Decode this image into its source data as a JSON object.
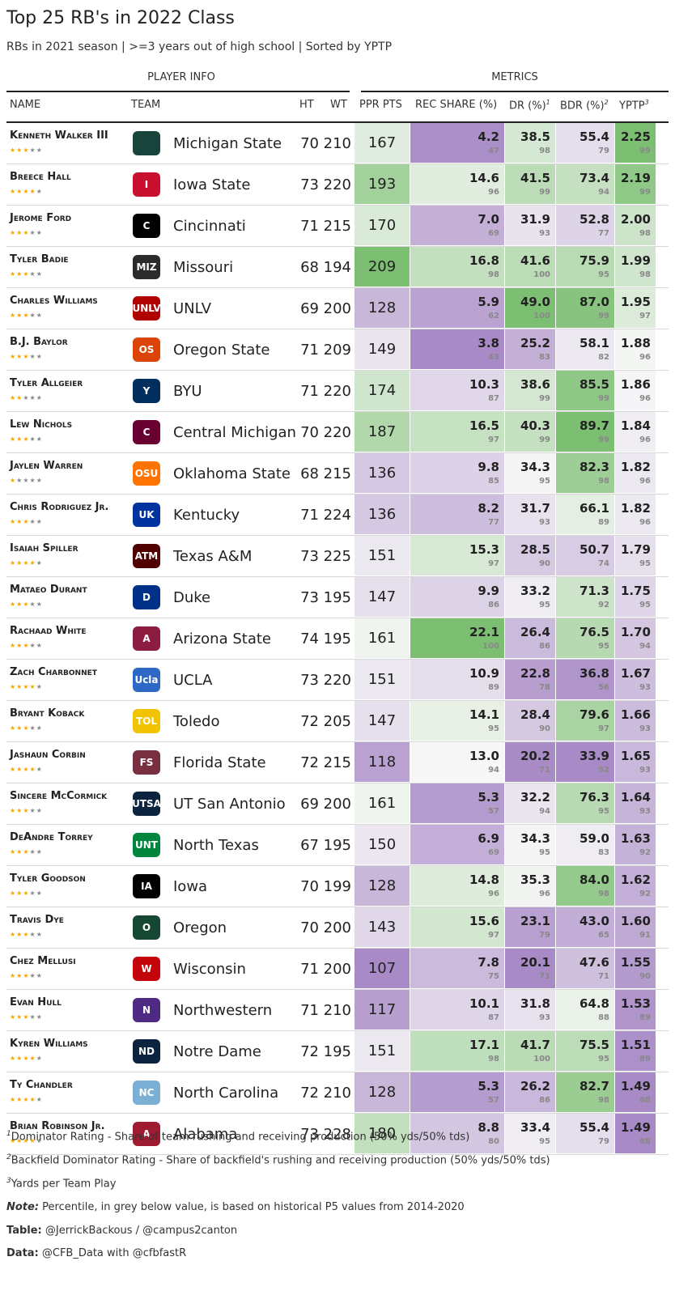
{
  "title": "Top 25 RB's in 2022 Class",
  "subtitle": "RBs in 2021 season | >=3 years out of high school | Sorted by YPTP",
  "spanners": {
    "info": "PLAYER INFO",
    "metrics": "METRICS"
  },
  "columns": {
    "name": "NAME",
    "team": "TEAM",
    "ht": "HT",
    "wt": "WT",
    "ppr": "PPR PTS",
    "rec": "REC SHARE (%)",
    "dr": "DR (%)",
    "dr_sup": "1",
    "bdr": "BDR (%)",
    "bdr_sup": "2",
    "yptp": "YPTP",
    "yptp_sup": "3"
  },
  "colors": {
    "green_max": "#7cbf72",
    "purple_max": "#a88ac6",
    "neutral": "#f7f7f7",
    "star_on": "#f5a800",
    "star_off": "#888888"
  },
  "rows": [
    {
      "name": "Kenneth Walker III",
      "stars": 3,
      "team": "Michigan State",
      "logo": "spartan-helmet",
      "logo_color": "#18453b",
      "logo_text": "",
      "ht": "70",
      "wt": "210",
      "ppr": "167",
      "rec": "4.2",
      "rec_p": "47",
      "dr": "38.5",
      "dr_p": "98",
      "bdr": "55.4",
      "bdr_p": "79",
      "yptp": "2.25",
      "yptp_p": "99"
    },
    {
      "name": "Breece Hall",
      "stars": 4,
      "team": "Iowa State",
      "logo": "iowa-state-logo",
      "logo_color": "#c8102e",
      "logo_text": "I",
      "ht": "73",
      "wt": "220",
      "ppr": "193",
      "rec": "14.6",
      "rec_p": "96",
      "dr": "41.5",
      "dr_p": "99",
      "bdr": "73.4",
      "bdr_p": "94",
      "yptp": "2.19",
      "yptp_p": "99"
    },
    {
      "name": "Jerome Ford",
      "stars": 3,
      "team": "Cincinnati",
      "logo": "cincinnati-c",
      "logo_color": "#000000",
      "logo_text": "C",
      "ht": "71",
      "wt": "215",
      "ppr": "170",
      "rec": "7.0",
      "rec_p": "69",
      "dr": "31.9",
      "dr_p": "93",
      "bdr": "52.8",
      "bdr_p": "77",
      "yptp": "2.00",
      "yptp_p": "98"
    },
    {
      "name": "Tyler Badie",
      "stars": 3,
      "team": "Missouri",
      "logo": "missouri-tiger",
      "logo_color": "#2b2b2b",
      "logo_text": "MIZ",
      "ht": "68",
      "wt": "194",
      "ppr": "209",
      "rec": "16.8",
      "rec_p": "98",
      "dr": "41.6",
      "dr_p": "100",
      "bdr": "75.9",
      "bdr_p": "95",
      "yptp": "1.99",
      "yptp_p": "98"
    },
    {
      "name": "Charles Williams",
      "stars": 3,
      "team": "UNLV",
      "logo": "unlv-logo",
      "logo_color": "#b10202",
      "logo_text": "UNLV",
      "ht": "69",
      "wt": "200",
      "ppr": "128",
      "rec": "5.9",
      "rec_p": "62",
      "dr": "49.0",
      "dr_p": "100",
      "bdr": "87.0",
      "bdr_p": "99",
      "yptp": "1.95",
      "yptp_p": "97"
    },
    {
      "name": "B.J. Baylor",
      "stars": 3,
      "team": "Oregon State",
      "logo": "beaver-icon",
      "logo_color": "#dc4405",
      "logo_text": "OS",
      "ht": "71",
      "wt": "209",
      "ppr": "149",
      "rec": "3.8",
      "rec_p": "43",
      "dr": "25.2",
      "dr_p": "83",
      "bdr": "58.1",
      "bdr_p": "82",
      "yptp": "1.88",
      "yptp_p": "96"
    },
    {
      "name": "Tyler Allgeier",
      "stars": 2,
      "team": "BYU",
      "logo": "byu-logo",
      "logo_color": "#002e5d",
      "logo_text": "Y",
      "ht": "71",
      "wt": "220",
      "ppr": "174",
      "rec": "10.3",
      "rec_p": "87",
      "dr": "38.6",
      "dr_p": "99",
      "bdr": "85.5",
      "bdr_p": "99",
      "yptp": "1.86",
      "yptp_p": "96"
    },
    {
      "name": "Lew Nichols",
      "stars": 3,
      "team": "Central Michigan",
      "logo": "cmu-logo",
      "logo_color": "#6a0032",
      "logo_text": "C",
      "ht": "70",
      "wt": "220",
      "ppr": "187",
      "rec": "16.5",
      "rec_p": "97",
      "dr": "40.3",
      "dr_p": "99",
      "bdr": "89.7",
      "bdr_p": "99",
      "yptp": "1.84",
      "yptp_p": "96"
    },
    {
      "name": "Jaylen Warren",
      "stars": 1,
      "team": "Oklahoma State",
      "logo": "osu-logo",
      "logo_color": "#ff7300",
      "logo_text": "OSU",
      "ht": "68",
      "wt": "215",
      "ppr": "136",
      "rec": "9.8",
      "rec_p": "85",
      "dr": "34.3",
      "dr_p": "95",
      "bdr": "82.3",
      "bdr_p": "98",
      "yptp": "1.82",
      "yptp_p": "96"
    },
    {
      "name": "Chris Rodriguez Jr.",
      "stars": 3,
      "team": "Kentucky",
      "logo": "kentucky-logo",
      "logo_color": "#0033a0",
      "logo_text": "UK",
      "ht": "71",
      "wt": "224",
      "ppr": "136",
      "rec": "8.2",
      "rec_p": "77",
      "dr": "31.7",
      "dr_p": "93",
      "bdr": "66.1",
      "bdr_p": "89",
      "yptp": "1.82",
      "yptp_p": "96"
    },
    {
      "name": "Isaiah Spiller",
      "stars": 4,
      "team": "Texas A&M",
      "logo": "tamu-logo",
      "logo_color": "#500000",
      "logo_text": "ATM",
      "ht": "73",
      "wt": "225",
      "ppr": "151",
      "rec": "15.3",
      "rec_p": "97",
      "dr": "28.5",
      "dr_p": "90",
      "bdr": "50.7",
      "bdr_p": "74",
      "yptp": "1.79",
      "yptp_p": "95"
    },
    {
      "name": "Mataeo Durant",
      "stars": 3,
      "team": "Duke",
      "logo": "duke-logo",
      "logo_color": "#003087",
      "logo_text": "D",
      "ht": "73",
      "wt": "195",
      "ppr": "147",
      "rec": "9.9",
      "rec_p": "86",
      "dr": "33.2",
      "dr_p": "95",
      "bdr": "71.3",
      "bdr_p": "92",
      "yptp": "1.75",
      "yptp_p": "95"
    },
    {
      "name": "Rachaad White",
      "stars": 3,
      "team": "Arizona State",
      "logo": "asu-logo",
      "logo_color": "#8c1d40",
      "logo_text": "A",
      "ht": "74",
      "wt": "195",
      "ppr": "161",
      "rec": "22.1",
      "rec_p": "100",
      "dr": "26.4",
      "dr_p": "86",
      "bdr": "76.5",
      "bdr_p": "95",
      "yptp": "1.70",
      "yptp_p": "94"
    },
    {
      "name": "Zach Charbonnet",
      "stars": 4,
      "team": "UCLA",
      "logo": "ucla-logo",
      "logo_color": "#2d68c4",
      "logo_text": "Ucla",
      "ht": "73",
      "wt": "220",
      "ppr": "151",
      "rec": "10.9",
      "rec_p": "89",
      "dr": "22.8",
      "dr_p": "78",
      "bdr": "36.8",
      "bdr_p": "56",
      "yptp": "1.67",
      "yptp_p": "93"
    },
    {
      "name": "Bryant Koback",
      "stars": 3,
      "team": "Toledo",
      "logo": "toledo-logo",
      "logo_color": "#f2c300",
      "logo_text": "TOL",
      "ht": "72",
      "wt": "205",
      "ppr": "147",
      "rec": "14.1",
      "rec_p": "95",
      "dr": "28.4",
      "dr_p": "90",
      "bdr": "79.6",
      "bdr_p": "97",
      "yptp": "1.66",
      "yptp_p": "93"
    },
    {
      "name": "Jashaun Corbin",
      "stars": 4,
      "team": "Florida State",
      "logo": "fsu-logo",
      "logo_color": "#782f40",
      "logo_text": "FS",
      "ht": "72",
      "wt": "215",
      "ppr": "118",
      "rec": "13.0",
      "rec_p": "94",
      "dr": "20.2",
      "dr_p": "71",
      "bdr": "33.9",
      "bdr_p": "52",
      "yptp": "1.65",
      "yptp_p": "93"
    },
    {
      "name": "Sincere McCormick",
      "stars": 3,
      "team": "UT San Antonio",
      "logo": "utsa-logo",
      "logo_color": "#0c2340",
      "logo_text": "UTSA",
      "ht": "69",
      "wt": "200",
      "ppr": "161",
      "rec": "5.3",
      "rec_p": "57",
      "dr": "32.2",
      "dr_p": "94",
      "bdr": "76.3",
      "bdr_p": "95",
      "yptp": "1.64",
      "yptp_p": "93"
    },
    {
      "name": "DeAndre Torrey",
      "stars": 3,
      "team": "North Texas",
      "logo": "unt-logo",
      "logo_color": "#00853e",
      "logo_text": "UNT",
      "ht": "67",
      "wt": "195",
      "ppr": "150",
      "rec": "6.9",
      "rec_p": "69",
      "dr": "34.3",
      "dr_p": "95",
      "bdr": "59.0",
      "bdr_p": "83",
      "yptp": "1.63",
      "yptp_p": "92"
    },
    {
      "name": "Tyler Goodson",
      "stars": 3,
      "team": "Iowa",
      "logo": "hawkeye-logo",
      "logo_color": "#000000",
      "logo_text": "IA",
      "ht": "70",
      "wt": "199",
      "ppr": "128",
      "rec": "14.8",
      "rec_p": "96",
      "dr": "35.3",
      "dr_p": "96",
      "bdr": "84.0",
      "bdr_p": "98",
      "yptp": "1.62",
      "yptp_p": "92"
    },
    {
      "name": "Travis Dye",
      "stars": 3,
      "team": "Oregon",
      "logo": "oregon-logo",
      "logo_color": "#154733",
      "logo_text": "O",
      "ht": "70",
      "wt": "200",
      "ppr": "143",
      "rec": "15.6",
      "rec_p": "97",
      "dr": "23.1",
      "dr_p": "79",
      "bdr": "43.0",
      "bdr_p": "65",
      "yptp": "1.60",
      "yptp_p": "91"
    },
    {
      "name": "Chez Mellusi",
      "stars": 3,
      "team": "Wisconsin",
      "logo": "wisconsin-logo",
      "logo_color": "#c5050c",
      "logo_text": "W",
      "ht": "71",
      "wt": "200",
      "ppr": "107",
      "rec": "7.8",
      "rec_p": "75",
      "dr": "20.1",
      "dr_p": "71",
      "bdr": "47.6",
      "bdr_p": "71",
      "yptp": "1.55",
      "yptp_p": "90"
    },
    {
      "name": "Evan Hull",
      "stars": 3,
      "team": "Northwestern",
      "logo": "northwestern-logo",
      "logo_color": "#4e2a84",
      "logo_text": "N",
      "ht": "71",
      "wt": "210",
      "ppr": "117",
      "rec": "10.1",
      "rec_p": "87",
      "dr": "31.8",
      "dr_p": "93",
      "bdr": "64.8",
      "bdr_p": "88",
      "yptp": "1.53",
      "yptp_p": "89"
    },
    {
      "name": "Kyren Williams",
      "stars": 4,
      "team": "Notre Dame",
      "logo": "notre-dame-logo",
      "logo_color": "#0c2340",
      "logo_text": "ND",
      "ht": "72",
      "wt": "195",
      "ppr": "151",
      "rec": "17.1",
      "rec_p": "98",
      "dr": "41.7",
      "dr_p": "100",
      "bdr": "75.5",
      "bdr_p": "95",
      "yptp": "1.51",
      "yptp_p": "89"
    },
    {
      "name": "Ty Chandler",
      "stars": 4,
      "team": "North Carolina",
      "logo": "unc-logo",
      "logo_color": "#7bafd4",
      "logo_text": "NC",
      "ht": "72",
      "wt": "210",
      "ppr": "128",
      "rec": "5.3",
      "rec_p": "57",
      "dr": "26.2",
      "dr_p": "86",
      "bdr": "82.7",
      "bdr_p": "98",
      "yptp": "1.49",
      "yptp_p": "88"
    },
    {
      "name": "Brian Robinson Jr.",
      "stars": 4,
      "team": "Alabama",
      "logo": "alabama-logo",
      "logo_color": "#9e1b32",
      "logo_text": "A",
      "ht": "73",
      "wt": "228",
      "ppr": "180",
      "rec": "8.8",
      "rec_p": "80",
      "dr": "33.4",
      "dr_p": "95",
      "bdr": "55.4",
      "bdr_p": "79",
      "yptp": "1.49",
      "yptp_p": "88"
    }
  ],
  "footnotes": {
    "f1_sup": "1",
    "f1": "Dominator Rating - Share of team rushing and receiving production (50% yds/50% tds)",
    "f2_sup": "2",
    "f2": "Backfield Dominator Rating - Share of backfield's rushing and receiving production (50% yds/50% tds)",
    "f3_sup": "3",
    "f3": "Yards per Team Play",
    "note_label": "Note:",
    "note": " Percentile, in grey below value, is based on historical P5 values from 2014-2020",
    "table_label": "Table:",
    "table": " @JerrickBackous / @campus2canton",
    "data_label": "Data:",
    "data": " @CFB_Data with @cfbfastR"
  }
}
